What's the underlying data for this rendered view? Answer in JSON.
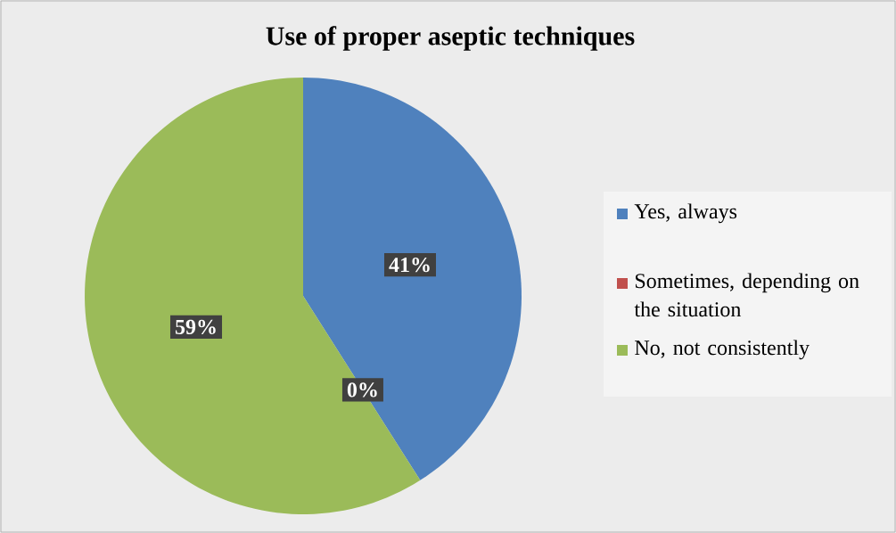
{
  "chart_data": {
    "type": "pie",
    "title": "Use of proper aseptic techniques",
    "categories": [
      "Yes, always",
      "Sometimes, depending on the situation",
      "No, not consistently"
    ],
    "values": [
      41,
      0,
      59
    ],
    "colors": [
      "#4f81bd",
      "#c0504d",
      "#9bbb59"
    ],
    "value_labels": [
      "41%",
      "0%",
      "59%"
    ],
    "legend": "right"
  }
}
